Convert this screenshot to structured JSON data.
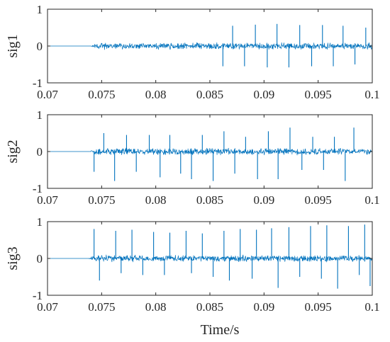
{
  "figure": {
    "xlabel": "Time/s",
    "line_color": "#0072BD"
  },
  "chart_data": [
    {
      "type": "line",
      "ylabel": "sig1",
      "xlim": [
        0.07,
        0.1
      ],
      "ylim": [
        -1,
        1
      ],
      "x_ticks": [
        "0.07",
        "0.075",
        "0.08",
        "0.085",
        "0.09",
        "0.095",
        "0.1"
      ],
      "y_ticks": [
        "-1",
        "0",
        "1"
      ],
      "onset": 0.074,
      "noise_amplitude": 0.07,
      "series": [
        {
          "spikes": [
            {
              "x": 0.0862,
              "y": -0.55
            },
            {
              "x": 0.0871,
              "y": 0.55
            },
            {
              "x": 0.0882,
              "y": -0.55
            },
            {
              "x": 0.0892,
              "y": 0.58
            },
            {
              "x": 0.0903,
              "y": -0.58
            },
            {
              "x": 0.0912,
              "y": 0.6
            },
            {
              "x": 0.0923,
              "y": -0.58
            },
            {
              "x": 0.0933,
              "y": 0.57
            },
            {
              "x": 0.0944,
              "y": -0.55
            },
            {
              "x": 0.0954,
              "y": 0.57
            },
            {
              "x": 0.0964,
              "y": -0.55
            },
            {
              "x": 0.0973,
              "y": 0.55
            },
            {
              "x": 0.0984,
              "y": -0.5
            },
            {
              "x": 0.0994,
              "y": 0.5
            }
          ]
        }
      ]
    },
    {
      "type": "line",
      "ylabel": "sig2",
      "xlim": [
        0.07,
        0.1
      ],
      "ylim": [
        -1,
        1
      ],
      "x_ticks": [
        "0.07",
        "0.075",
        "0.08",
        "0.085",
        "0.09",
        "0.095",
        "0.1"
      ],
      "y_ticks": [
        "-1",
        "0",
        "1"
      ],
      "onset": 0.0739,
      "noise_amplitude": 0.07,
      "series": [
        {
          "spikes": [
            {
              "x": 0.0743,
              "y": -0.55
            },
            {
              "x": 0.0752,
              "y": 0.5
            },
            {
              "x": 0.0762,
              "y": -0.8
            },
            {
              "x": 0.0773,
              "y": 0.45
            },
            {
              "x": 0.0782,
              "y": -0.55
            },
            {
              "x": 0.0794,
              "y": 0.45
            },
            {
              "x": 0.0804,
              "y": -0.7
            },
            {
              "x": 0.0813,
              "y": 0.45
            },
            {
              "x": 0.0823,
              "y": -0.6
            },
            {
              "x": 0.0833,
              "y": -0.75
            },
            {
              "x": 0.0843,
              "y": 0.45
            },
            {
              "x": 0.0853,
              "y": -0.8
            },
            {
              "x": 0.0863,
              "y": 0.55
            },
            {
              "x": 0.0873,
              "y": -0.6
            },
            {
              "x": 0.0883,
              "y": 0.4
            },
            {
              "x": 0.0894,
              "y": -0.75
            },
            {
              "x": 0.0904,
              "y": 0.55
            },
            {
              "x": 0.0913,
              "y": -0.75
            },
            {
              "x": 0.0924,
              "y": 0.65
            },
            {
              "x": 0.0935,
              "y": -0.5
            },
            {
              "x": 0.0945,
              "y": 0.4
            },
            {
              "x": 0.0955,
              "y": -0.5
            },
            {
              "x": 0.0965,
              "y": 0.4
            },
            {
              "x": 0.0975,
              "y": -0.8
            },
            {
              "x": 0.0983,
              "y": 0.65
            }
          ]
        }
      ]
    },
    {
      "type": "line",
      "ylabel": "sig3",
      "xlim": [
        0.07,
        0.1
      ],
      "ylim": [
        -1,
        1
      ],
      "x_ticks": [
        "0.07",
        "0.075",
        "0.08",
        "0.085",
        "0.09",
        "0.095",
        "0.1"
      ],
      "y_ticks": [
        "-1",
        "0",
        "1"
      ],
      "onset": 0.0738,
      "noise_amplitude": 0.07,
      "series": [
        {
          "spikes": [
            {
              "x": 0.0743,
              "y": 0.8
            },
            {
              "x": 0.0748,
              "y": -0.6
            },
            {
              "x": 0.0763,
              "y": 0.75
            },
            {
              "x": 0.0768,
              "y": -0.4
            },
            {
              "x": 0.0778,
              "y": 0.78
            },
            {
              "x": 0.0788,
              "y": -0.45
            },
            {
              "x": 0.0798,
              "y": 0.72
            },
            {
              "x": 0.0808,
              "y": -0.45
            },
            {
              "x": 0.0813,
              "y": 0.7
            },
            {
              "x": 0.0828,
              "y": 0.75
            },
            {
              "x": 0.0833,
              "y": -0.4
            },
            {
              "x": 0.0843,
              "y": 0.68
            },
            {
              "x": 0.0853,
              "y": -0.5
            },
            {
              "x": 0.0863,
              "y": 0.75
            },
            {
              "x": 0.0868,
              "y": -0.6
            },
            {
              "x": 0.0878,
              "y": 0.8
            },
            {
              "x": 0.0889,
              "y": -0.55
            },
            {
              "x": 0.0893,
              "y": 0.78
            },
            {
              "x": 0.0907,
              "y": 0.82
            },
            {
              "x": 0.0913,
              "y": -0.8
            },
            {
              "x": 0.0923,
              "y": 0.85
            },
            {
              "x": 0.0933,
              "y": -0.5
            },
            {
              "x": 0.0943,
              "y": 0.88
            },
            {
              "x": 0.0953,
              "y": -0.55
            },
            {
              "x": 0.0958,
              "y": 0.9
            },
            {
              "x": 0.0968,
              "y": -0.82
            },
            {
              "x": 0.0978,
              "y": 0.88
            },
            {
              "x": 0.0988,
              "y": -0.45
            },
            {
              "x": 0.0993,
              "y": 0.92
            },
            {
              "x": 0.0998,
              "y": -0.75
            }
          ]
        }
      ]
    }
  ]
}
